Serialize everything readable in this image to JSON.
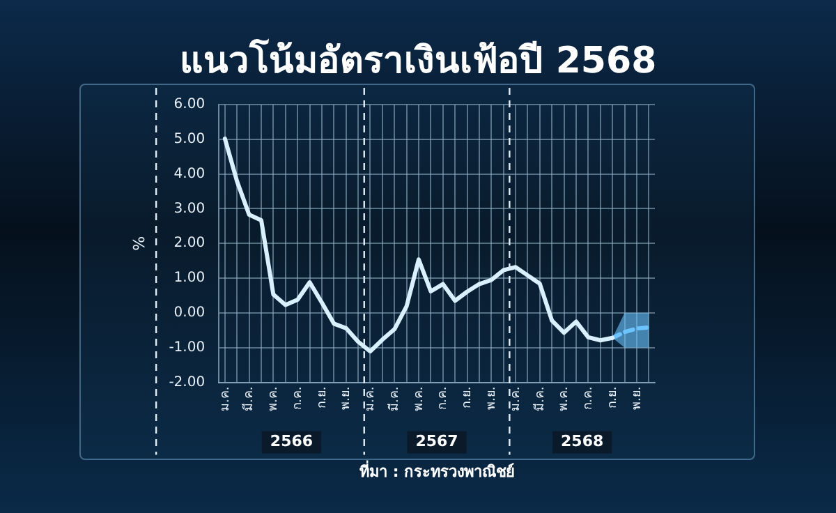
{
  "chart_data": {
    "type": "line",
    "title": "แนวโน้มอัตราเงินเฟ้อปี 2568",
    "ylabel": "%",
    "categories": [
      "ม.ค.",
      null,
      "มี.ค.",
      null,
      "พ.ค.",
      null,
      "ก.ค.",
      null,
      "ก.ย.",
      null,
      "พ.ย.",
      null,
      "ม.ค.",
      null,
      "มี.ค.",
      null,
      "พ.ค.",
      null,
      "ก.ค.",
      null,
      "ก.ย.",
      null,
      "พ.ย.",
      null,
      "ม.ค.",
      null,
      "มี.ค.",
      null,
      "พ.ค.",
      null,
      "ก.ค.",
      null,
      "ก.ย.",
      null,
      "พ.ย.",
      null
    ],
    "series": [
      {
        "color": "#d8f0ff",
        "values": [
          5.02,
          3.79,
          2.83,
          2.67,
          0.53,
          0.23,
          0.38,
          0.88,
          0.3,
          -0.31,
          -0.44,
          -0.83,
          -1.11,
          -0.77,
          -0.47,
          0.19,
          1.54,
          0.62,
          0.83,
          0.35,
          0.61,
          0.83,
          0.95,
          1.23,
          1.32,
          1.08,
          0.84,
          -0.22,
          -0.57,
          -0.25,
          -0.7,
          -0.79,
          -0.72,
          null,
          null,
          null
        ]
      },
      {
        "color": "#6cc4ff",
        "line_style": "dashed",
        "values": [
          null,
          null,
          null,
          null,
          null,
          null,
          null,
          null,
          null,
          null,
          null,
          null,
          null,
          null,
          null,
          null,
          null,
          null,
          null,
          null,
          null,
          null,
          null,
          null,
          null,
          null,
          null,
          null,
          null,
          null,
          null,
          null,
          -0.72,
          -0.55,
          -0.45,
          -0.42
        ],
        "lower": [
          null,
          null,
          null,
          null,
          null,
          null,
          null,
          null,
          null,
          null,
          null,
          null,
          null,
          null,
          null,
          null,
          null,
          null,
          null,
          null,
          null,
          null,
          null,
          null,
          null,
          null,
          null,
          null,
          null,
          null,
          null,
          null,
          -0.72,
          -1.0,
          -1.0,
          -1.0
        ],
        "upper": [
          null,
          null,
          null,
          null,
          null,
          null,
          null,
          null,
          null,
          null,
          null,
          null,
          null,
          null,
          null,
          null,
          null,
          null,
          null,
          null,
          null,
          null,
          null,
          null,
          null,
          null,
          null,
          null,
          null,
          null,
          null,
          null,
          -0.72,
          0.0,
          0.0,
          0.0
        ]
      }
    ],
    "ylim": [
      -2,
      6
    ],
    "yticks": [
      {
        "value": -2,
        "label": "-2.00"
      },
      {
        "value": -1,
        "label": "-1.00"
      },
      {
        "value": 0,
        "label": "0.00"
      },
      {
        "value": 1,
        "label": "1.00"
      },
      {
        "value": 2,
        "label": "2.00"
      },
      {
        "value": 3,
        "label": "3.00"
      },
      {
        "value": 4,
        "label": "4.00"
      },
      {
        "value": 5,
        "label": "5.00"
      },
      {
        "value": 6,
        "label": "6.00"
      }
    ],
    "grid": true,
    "legend": false,
    "marker": "none",
    "annotations": [
      "2566",
      "2567",
      "2568",
      "ที่มา : กระทรวงพาณิชย์"
    ]
  }
}
